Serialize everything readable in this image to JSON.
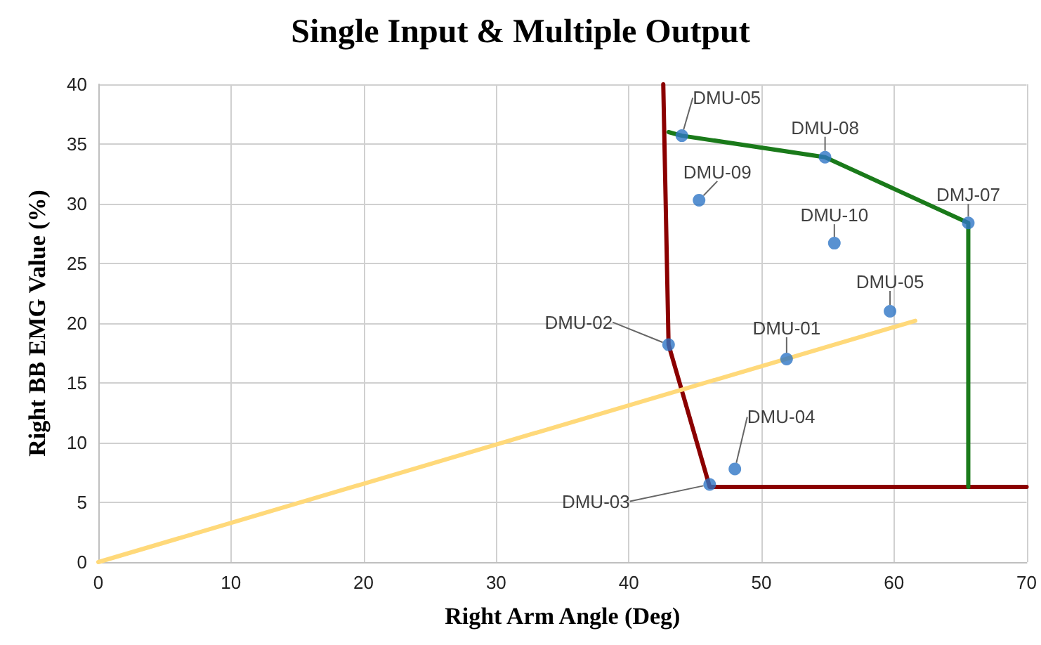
{
  "chart_data": {
    "type": "scatter",
    "title": "Single Input & Multiple Output",
    "xlabel": "Right Arm Angle (Deg)",
    "ylabel": "Right BB EMG Value (%)",
    "xlim": [
      0,
      70
    ],
    "xticks": [
      0,
      10,
      20,
      30,
      40,
      50,
      60,
      70
    ],
    "ylim": [
      0,
      40
    ],
    "yticks": [
      0,
      5,
      10,
      15,
      20,
      25,
      30,
      35,
      40
    ],
    "grid": true,
    "series": [
      {
        "type": "line",
        "color": "#8b0000",
        "x": [
          42.6,
          43.0,
          46.1,
          70
        ],
        "values": [
          40,
          18.2,
          6.3,
          6.3
        ],
        "marker": "none"
      },
      {
        "type": "line",
        "color": "#1a7a1a",
        "x": [
          43.0,
          44.0,
          54.8,
          65.6,
          65.6
        ],
        "values": [
          36.0,
          35.7,
          33.9,
          28.4,
          6.3
        ],
        "marker": "none"
      },
      {
        "type": "line",
        "color": "#ffd97a",
        "x": [
          0,
          61.6
        ],
        "values": [
          0,
          20.2
        ],
        "marker": "none"
      },
      {
        "color": "#2e75c6",
        "marker": "circle",
        "x": [
          44.0,
          54.8,
          45.3,
          65.6,
          55.5,
          59.7,
          43.0,
          51.9,
          48.0,
          46.1
        ],
        "values": [
          35.7,
          33.9,
          30.3,
          28.4,
          26.7,
          21.0,
          18.2,
          17.0,
          7.8,
          6.5
        ],
        "value_labels": [
          "DMU-05",
          "DMU-08",
          "DMU-09",
          "DMJ-07",
          "DMU-10",
          "DMU-05",
          "DMU-02",
          "DMU-01",
          "DMU-04",
          "DMU-03"
        ]
      }
    ]
  }
}
